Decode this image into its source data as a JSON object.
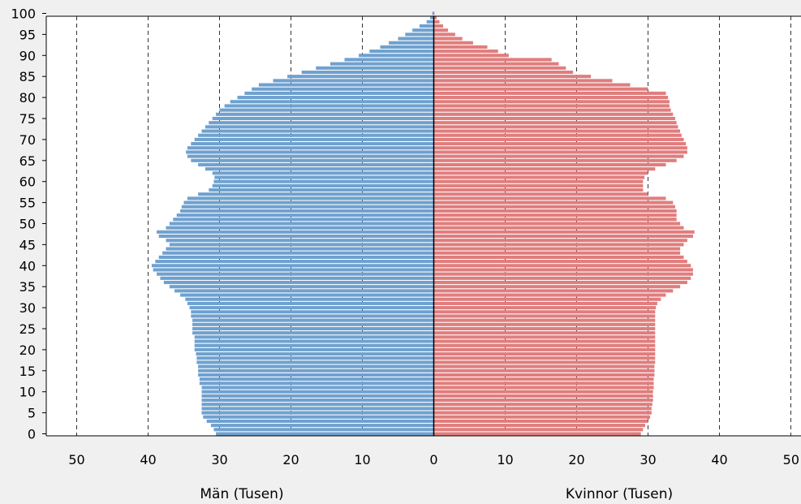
{
  "chart_data": {
    "type": "bar",
    "orientation": "horizontal",
    "subtype": "population-pyramid",
    "title": "",
    "xlabel_left": "Män (Tusen)",
    "xlabel_right": "Kvinnor (Tusen)",
    "ylim": [
      0,
      100
    ],
    "xlim": [
      0,
      50
    ],
    "x_tick_values": [
      0,
      10,
      20,
      30,
      40,
      50
    ],
    "x_tick_labels_left": [
      "50",
      "40",
      "30",
      "20",
      "10"
    ],
    "x_tick_labels_right": [
      "0",
      "10",
      "20",
      "30",
      "40",
      "50"
    ],
    "y_ticks": [
      0,
      5,
      10,
      15,
      20,
      25,
      30,
      35,
      40,
      45,
      50,
      55,
      60,
      65,
      70,
      75,
      80,
      85,
      90,
      95,
      100
    ],
    "y_tick_labels": [
      "0",
      "5",
      "10",
      "15",
      "20",
      "25",
      "30",
      "35",
      "40",
      "45",
      "50",
      "55",
      "60",
      "65",
      "70",
      "75",
      "80",
      "85",
      "90",
      "95",
      "100"
    ],
    "grid": "vertical-dashed",
    "ages": [
      0,
      1,
      2,
      3,
      4,
      5,
      6,
      7,
      8,
      9,
      10,
      11,
      12,
      13,
      14,
      15,
      16,
      17,
      18,
      19,
      20,
      21,
      22,
      23,
      24,
      25,
      26,
      27,
      28,
      29,
      30,
      31,
      32,
      33,
      34,
      35,
      36,
      37,
      38,
      39,
      40,
      41,
      42,
      43,
      44,
      45,
      46,
      47,
      48,
      49,
      50,
      51,
      52,
      53,
      54,
      55,
      56,
      57,
      58,
      59,
      60,
      61,
      62,
      63,
      64,
      65,
      66,
      67,
      68,
      69,
      70,
      71,
      72,
      73,
      74,
      75,
      76,
      77,
      78,
      79,
      80,
      81,
      82,
      83,
      84,
      85,
      86,
      87,
      88,
      89,
      90,
      91,
      92,
      93,
      94,
      95,
      96,
      97,
      98,
      99,
      100
    ],
    "series": [
      {
        "name": "Män (Tusen)",
        "side": "left",
        "color": "#6fa1cf",
        "values": [
          30.5,
          30.8,
          31.2,
          31.8,
          32.3,
          32.5,
          32.5,
          32.5,
          32.5,
          32.5,
          32.5,
          32.5,
          32.8,
          32.8,
          33,
          33,
          33,
          33.2,
          33.2,
          33.3,
          33.5,
          33.5,
          33.5,
          33.5,
          33.8,
          33.8,
          33.8,
          33.8,
          34,
          34,
          34.2,
          34.5,
          34.8,
          35.5,
          36.3,
          37,
          37.8,
          38.3,
          38.8,
          39.3,
          39.5,
          39,
          38.5,
          38,
          37.5,
          37,
          37.5,
          38.5,
          38.8,
          37.5,
          37,
          36.5,
          36,
          35.5,
          35.3,
          35,
          34.5,
          33,
          31.5,
          31,
          30.8,
          30.7,
          31,
          32,
          33,
          34,
          34.5,
          34.7,
          34.5,
          34,
          33.5,
          33,
          32.5,
          32,
          31.5,
          31,
          30.5,
          30,
          29.3,
          28.5,
          27.5,
          26.5,
          25.5,
          24.5,
          22.5,
          20.5,
          18.5,
          16.5,
          14.5,
          12.5,
          10.5,
          9,
          7.5,
          6.3,
          5,
          4,
          3,
          2,
          1,
          0.5,
          0.2
        ]
      },
      {
        "name": "Kvinnor (Tusen)",
        "side": "right",
        "color": "#e17d7d",
        "values": [
          29,
          29.3,
          29.6,
          30,
          30.3,
          30.5,
          30.5,
          30.6,
          30.7,
          30.7,
          30.7,
          30.8,
          30.8,
          30.8,
          30.9,
          30.9,
          30.9,
          31,
          31,
          31,
          31,
          31,
          31,
          31,
          31,
          31,
          31,
          31,
          31,
          31,
          31.1,
          31.3,
          31.8,
          32.5,
          33.5,
          34.5,
          35.5,
          36,
          36.3,
          36.3,
          36,
          35.5,
          35,
          34.5,
          34.5,
          35,
          35.5,
          36.3,
          36.5,
          35,
          34.5,
          34,
          34,
          34,
          33.8,
          33.5,
          32.5,
          30,
          29.3,
          29.3,
          29.3,
          29.5,
          30,
          31,
          32.5,
          34,
          35,
          35.5,
          35.5,
          35.3,
          35,
          34.7,
          34.5,
          34.2,
          34,
          33.8,
          33.5,
          33.2,
          33,
          33,
          32.8,
          32.5,
          30,
          27.5,
          25,
          22,
          19.5,
          18.5,
          17.5,
          16.5,
          10.5,
          9,
          7.5,
          5.5,
          4,
          3,
          2,
          1.3,
          0.8,
          0.4,
          0.1
        ]
      }
    ]
  }
}
